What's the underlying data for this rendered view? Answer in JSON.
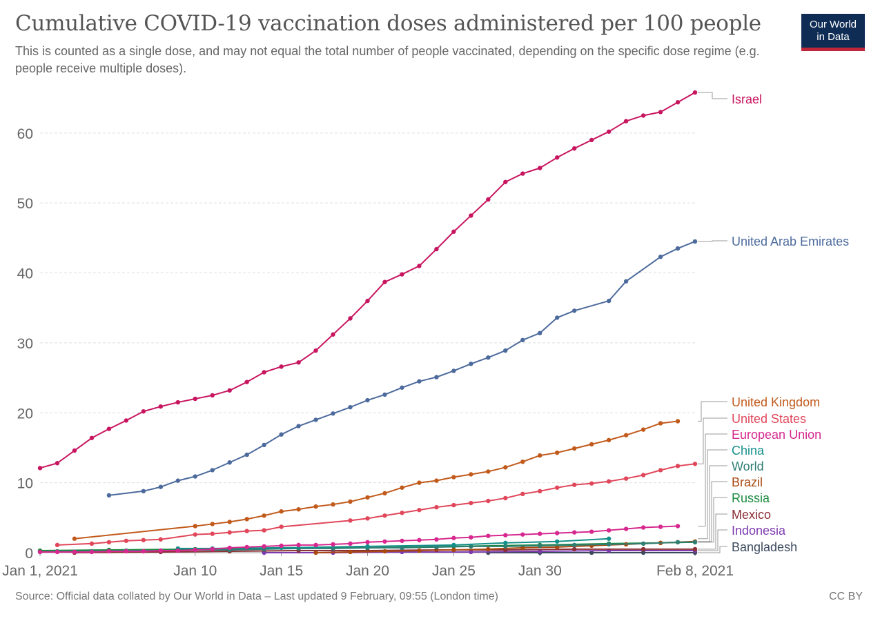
{
  "header": {
    "title": "Cumulative COVID-19 vaccination doses administered per 100 people",
    "subtitle": "This is counted as a single dose, and may not equal the total number of people vaccinated, depending on the specific dose regime (e.g. people receive multiple doses).",
    "logo": [
      "Our World",
      "in Data"
    ]
  },
  "footer": {
    "source": "Source: Official data collated by Our World in Data – Last updated 9 February, 09:55 (London time)",
    "license": "CC BY"
  },
  "chart_data": {
    "type": "line",
    "title": "Cumulative COVID-19 vaccination doses administered per 100 people",
    "xlabel": "",
    "ylabel": "",
    "x_unit": "date",
    "xlim": [
      "2021-01-01",
      "2021-02-08"
    ],
    "ylim": [
      0,
      66
    ],
    "y_ticks": [
      0,
      10,
      20,
      30,
      40,
      50,
      60
    ],
    "x_ticks": [
      {
        "date": "2021-01-01",
        "label": "Jan 1, 2021"
      },
      {
        "date": "2021-01-10",
        "label": "Jan 10"
      },
      {
        "date": "2021-01-15",
        "label": "Jan 15"
      },
      {
        "date": "2021-01-20",
        "label": "Jan 20"
      },
      {
        "date": "2021-01-25",
        "label": "Jan 25"
      },
      {
        "date": "2021-01-30",
        "label": "Jan 30"
      },
      {
        "date": "2021-02-08",
        "label": "Feb 8, 2021"
      }
    ],
    "grid": "horizontal dashed",
    "legend": "right, labels at line ends",
    "series": [
      {
        "name": "Israel",
        "color": "#c8155f",
        "points": [
          [
            "2021-01-01",
            12.1
          ],
          [
            "2021-01-02",
            12.8
          ],
          [
            "2021-01-03",
            14.6
          ],
          [
            "2021-01-04",
            16.4
          ],
          [
            "2021-01-05",
            17.7
          ],
          [
            "2021-01-06",
            18.9
          ],
          [
            "2021-01-07",
            20.2
          ],
          [
            "2021-01-08",
            20.9
          ],
          [
            "2021-01-09",
            21.5
          ],
          [
            "2021-01-10",
            22.0
          ],
          [
            "2021-01-11",
            22.5
          ],
          [
            "2021-01-12",
            23.2
          ],
          [
            "2021-01-13",
            24.4
          ],
          [
            "2021-01-14",
            25.8
          ],
          [
            "2021-01-15",
            26.6
          ],
          [
            "2021-01-16",
            27.2
          ],
          [
            "2021-01-17",
            28.9
          ],
          [
            "2021-01-18",
            31.2
          ],
          [
            "2021-01-19",
            33.5
          ],
          [
            "2021-01-20",
            36.0
          ],
          [
            "2021-01-21",
            38.7
          ],
          [
            "2021-01-22",
            39.8
          ],
          [
            "2021-01-23",
            41.0
          ],
          [
            "2021-01-24",
            43.4
          ],
          [
            "2021-01-25",
            45.9
          ],
          [
            "2021-01-26",
            48.2
          ],
          [
            "2021-01-27",
            50.5
          ],
          [
            "2021-01-28",
            53.0
          ],
          [
            "2021-01-29",
            54.2
          ],
          [
            "2021-01-30",
            55.0
          ],
          [
            "2021-01-31",
            56.5
          ],
          [
            "2021-02-01",
            57.8
          ],
          [
            "2021-02-02",
            59.0
          ],
          [
            "2021-02-03",
            60.2
          ],
          [
            "2021-02-04",
            61.7
          ],
          [
            "2021-02-05",
            62.5
          ],
          [
            "2021-02-06",
            63.0
          ],
          [
            "2021-02-07",
            64.4
          ],
          [
            "2021-02-08",
            65.8
          ]
        ]
      },
      {
        "name": "United Arab Emirates",
        "color": "#4c6a9c",
        "points": [
          [
            "2021-01-05",
            8.2
          ],
          [
            "2021-01-07",
            8.8
          ],
          [
            "2021-01-08",
            9.4
          ],
          [
            "2021-01-09",
            10.3
          ],
          [
            "2021-01-10",
            10.9
          ],
          [
            "2021-01-11",
            11.8
          ],
          [
            "2021-01-12",
            12.9
          ],
          [
            "2021-01-13",
            14.0
          ],
          [
            "2021-01-14",
            15.4
          ],
          [
            "2021-01-15",
            16.9
          ],
          [
            "2021-01-16",
            18.1
          ],
          [
            "2021-01-17",
            19.0
          ],
          [
            "2021-01-18",
            19.9
          ],
          [
            "2021-01-19",
            20.8
          ],
          [
            "2021-01-20",
            21.8
          ],
          [
            "2021-01-21",
            22.6
          ],
          [
            "2021-01-22",
            23.6
          ],
          [
            "2021-01-23",
            24.5
          ],
          [
            "2021-01-24",
            25.1
          ],
          [
            "2021-01-25",
            26.0
          ],
          [
            "2021-01-26",
            27.0
          ],
          [
            "2021-01-27",
            27.9
          ],
          [
            "2021-01-28",
            28.9
          ],
          [
            "2021-01-29",
            30.4
          ],
          [
            "2021-01-30",
            31.4
          ],
          [
            "2021-01-31",
            33.6
          ],
          [
            "2021-02-01",
            34.6
          ],
          [
            "2021-02-03",
            36.0
          ],
          [
            "2021-02-04",
            38.8
          ],
          [
            "2021-02-06",
            42.3
          ],
          [
            "2021-02-07",
            43.5
          ],
          [
            "2021-02-08",
            44.5
          ]
        ]
      },
      {
        "name": "United Kingdom",
        "color": "#c15a1b",
        "points": [
          [
            "2021-01-03",
            2.0
          ],
          [
            "2021-01-10",
            3.8
          ],
          [
            "2021-01-11",
            4.1
          ],
          [
            "2021-01-12",
            4.4
          ],
          [
            "2021-01-13",
            4.8
          ],
          [
            "2021-01-14",
            5.3
          ],
          [
            "2021-01-15",
            5.9
          ],
          [
            "2021-01-16",
            6.2
          ],
          [
            "2021-01-17",
            6.6
          ],
          [
            "2021-01-18",
            6.9
          ],
          [
            "2021-01-19",
            7.3
          ],
          [
            "2021-01-20",
            7.9
          ],
          [
            "2021-01-21",
            8.5
          ],
          [
            "2021-01-22",
            9.3
          ],
          [
            "2021-01-23",
            10.0
          ],
          [
            "2021-01-24",
            10.3
          ],
          [
            "2021-01-25",
            10.8
          ],
          [
            "2021-01-26",
            11.2
          ],
          [
            "2021-01-27",
            11.6
          ],
          [
            "2021-01-28",
            12.2
          ],
          [
            "2021-01-29",
            13.0
          ],
          [
            "2021-01-30",
            13.9
          ],
          [
            "2021-01-31",
            14.3
          ],
          [
            "2021-02-01",
            14.9
          ],
          [
            "2021-02-02",
            15.5
          ],
          [
            "2021-02-03",
            16.1
          ],
          [
            "2021-02-04",
            16.8
          ],
          [
            "2021-02-05",
            17.6
          ],
          [
            "2021-02-06",
            18.5
          ],
          [
            "2021-02-07",
            18.8
          ]
        ]
      },
      {
        "name": "United States",
        "color": "#e0475a",
        "points": [
          [
            "2021-01-02",
            1.1
          ],
          [
            "2021-01-04",
            1.3
          ],
          [
            "2021-01-05",
            1.5
          ],
          [
            "2021-01-06",
            1.7
          ],
          [
            "2021-01-07",
            1.8
          ],
          [
            "2021-01-08",
            1.9
          ],
          [
            "2021-01-10",
            2.6
          ],
          [
            "2021-01-11",
            2.7
          ],
          [
            "2021-01-12",
            2.9
          ],
          [
            "2021-01-13",
            3.1
          ],
          [
            "2021-01-14",
            3.2
          ],
          [
            "2021-01-15",
            3.7
          ],
          [
            "2021-01-19",
            4.6
          ],
          [
            "2021-01-20",
            4.9
          ],
          [
            "2021-01-21",
            5.3
          ],
          [
            "2021-01-22",
            5.7
          ],
          [
            "2021-01-23",
            6.1
          ],
          [
            "2021-01-24",
            6.5
          ],
          [
            "2021-01-25",
            6.8
          ],
          [
            "2021-01-26",
            7.1
          ],
          [
            "2021-01-27",
            7.4
          ],
          [
            "2021-01-28",
            7.8
          ],
          [
            "2021-01-29",
            8.4
          ],
          [
            "2021-01-30",
            8.8
          ],
          [
            "2021-01-31",
            9.3
          ],
          [
            "2021-02-01",
            9.7
          ],
          [
            "2021-02-02",
            9.9
          ],
          [
            "2021-02-03",
            10.2
          ],
          [
            "2021-02-04",
            10.6
          ],
          [
            "2021-02-05",
            11.1
          ],
          [
            "2021-02-06",
            11.8
          ],
          [
            "2021-02-07",
            12.4
          ],
          [
            "2021-02-08",
            12.7
          ]
        ]
      },
      {
        "name": "European Union",
        "color": "#d6288e",
        "points": [
          [
            "2021-01-01",
            0.1
          ],
          [
            "2021-01-02",
            0.1
          ],
          [
            "2021-01-03",
            0.1
          ],
          [
            "2021-01-04",
            0.1
          ],
          [
            "2021-01-05",
            0.2
          ],
          [
            "2021-01-06",
            0.2
          ],
          [
            "2021-01-07",
            0.2
          ],
          [
            "2021-01-08",
            0.3
          ],
          [
            "2021-01-09",
            0.3
          ],
          [
            "2021-01-10",
            0.4
          ],
          [
            "2021-01-11",
            0.5
          ],
          [
            "2021-01-12",
            0.7
          ],
          [
            "2021-01-13",
            0.8
          ],
          [
            "2021-01-14",
            0.9
          ],
          [
            "2021-01-15",
            1.0
          ],
          [
            "2021-01-16",
            1.1
          ],
          [
            "2021-01-17",
            1.1
          ],
          [
            "2021-01-18",
            1.2
          ],
          [
            "2021-01-19",
            1.3
          ],
          [
            "2021-01-20",
            1.5
          ],
          [
            "2021-01-21",
            1.6
          ],
          [
            "2021-01-22",
            1.7
          ],
          [
            "2021-01-23",
            1.8
          ],
          [
            "2021-01-24",
            1.9
          ],
          [
            "2021-01-25",
            2.1
          ],
          [
            "2021-01-26",
            2.2
          ],
          [
            "2021-01-27",
            2.4
          ],
          [
            "2021-01-28",
            2.5
          ],
          [
            "2021-01-29",
            2.6
          ],
          [
            "2021-01-30",
            2.7
          ],
          [
            "2021-01-31",
            2.8
          ],
          [
            "2021-02-01",
            2.9
          ],
          [
            "2021-02-02",
            3.0
          ],
          [
            "2021-02-03",
            3.2
          ],
          [
            "2021-02-04",
            3.4
          ],
          [
            "2021-02-05",
            3.6
          ],
          [
            "2021-02-06",
            3.7
          ],
          [
            "2021-02-07",
            3.8
          ]
        ]
      },
      {
        "name": "China",
        "color": "#14908a",
        "points": [
          [
            "2021-01-09",
            0.6
          ],
          [
            "2021-01-11",
            0.6
          ],
          [
            "2021-01-15",
            0.7
          ],
          [
            "2021-01-20",
            0.9
          ],
          [
            "2021-01-25",
            1.1
          ],
          [
            "2021-01-28",
            1.4
          ],
          [
            "2021-01-31",
            1.6
          ],
          [
            "2021-02-03",
            2.0
          ]
        ]
      },
      {
        "name": "World",
        "color": "#2f7e73",
        "points": [
          [
            "2021-01-01",
            0.1
          ],
          [
            "2021-01-02",
            0.2
          ],
          [
            "2021-01-04",
            0.2
          ],
          [
            "2021-01-06",
            0.3
          ],
          [
            "2021-01-08",
            0.3
          ],
          [
            "2021-01-10",
            0.4
          ],
          [
            "2021-01-12",
            0.4
          ],
          [
            "2021-01-14",
            0.5
          ],
          [
            "2021-01-16",
            0.6
          ],
          [
            "2021-01-18",
            0.6
          ],
          [
            "2021-01-20",
            0.7
          ],
          [
            "2021-01-22",
            0.7
          ],
          [
            "2021-01-24",
            0.8
          ],
          [
            "2021-01-26",
            0.9
          ],
          [
            "2021-01-28",
            0.9
          ],
          [
            "2021-01-30",
            1.0
          ],
          [
            "2021-02-01",
            1.1
          ],
          [
            "2021-02-03",
            1.2
          ],
          [
            "2021-02-05",
            1.3
          ],
          [
            "2021-02-07",
            1.5
          ],
          [
            "2021-02-08",
            1.5
          ]
        ]
      },
      {
        "name": "Brazil",
        "color": "#a9480f",
        "points": [
          [
            "2021-01-17",
            0.0
          ],
          [
            "2021-01-19",
            0.1
          ],
          [
            "2021-01-21",
            0.2
          ],
          [
            "2021-01-23",
            0.3
          ],
          [
            "2021-01-25",
            0.4
          ],
          [
            "2021-01-27",
            0.5
          ],
          [
            "2021-01-29",
            0.7
          ],
          [
            "2021-01-31",
            0.8
          ],
          [
            "2021-02-02",
            1.0
          ],
          [
            "2021-02-04",
            1.2
          ],
          [
            "2021-02-06",
            1.4
          ],
          [
            "2021-02-07",
            1.5
          ],
          [
            "2021-02-08",
            1.6
          ]
        ]
      },
      {
        "name": "Russia",
        "color": "#1a8a3e",
        "points": [
          [
            "2021-01-01",
            0.3
          ],
          [
            "2021-01-05",
            0.4
          ],
          [
            "2021-01-10",
            0.5
          ],
          [
            "2021-01-14",
            0.6
          ],
          [
            "2021-01-20",
            0.7
          ],
          [
            "2021-01-25",
            0.9
          ],
          [
            "2021-01-30",
            1.1
          ],
          [
            "2021-02-03",
            1.3
          ],
          [
            "2021-02-06",
            1.4
          ],
          [
            "2021-02-08",
            1.5
          ]
        ]
      },
      {
        "name": "Mexico",
        "color": "#8c2f36",
        "points": [
          [
            "2021-01-03",
            0.0
          ],
          [
            "2021-01-08",
            0.1
          ],
          [
            "2021-01-12",
            0.2
          ],
          [
            "2021-01-16",
            0.3
          ],
          [
            "2021-01-20",
            0.3
          ],
          [
            "2021-01-24",
            0.4
          ],
          [
            "2021-01-28",
            0.4
          ],
          [
            "2021-02-01",
            0.5
          ],
          [
            "2021-02-05",
            0.5
          ],
          [
            "2021-02-08",
            0.5
          ]
        ]
      },
      {
        "name": "Indonesia",
        "color": "#7d3aaf",
        "points": [
          [
            "2021-01-14",
            0.0
          ],
          [
            "2021-01-18",
            0.0
          ],
          [
            "2021-01-22",
            0.1
          ],
          [
            "2021-01-26",
            0.1
          ],
          [
            "2021-01-30",
            0.2
          ],
          [
            "2021-02-03",
            0.3
          ],
          [
            "2021-02-08",
            0.3
          ]
        ]
      },
      {
        "name": "Bangladesh",
        "color": "#3d4a5e",
        "points": [
          [
            "2021-01-27",
            0.0
          ],
          [
            "2021-01-30",
            0.0
          ],
          [
            "2021-02-02",
            0.0
          ],
          [
            "2021-02-05",
            0.0
          ],
          [
            "2021-02-08",
            0.0
          ]
        ]
      }
    ],
    "colors": {
      "grid": "#dddddd",
      "axis": "#999999",
      "tick_text": "#666666",
      "connector": "#999999"
    }
  }
}
